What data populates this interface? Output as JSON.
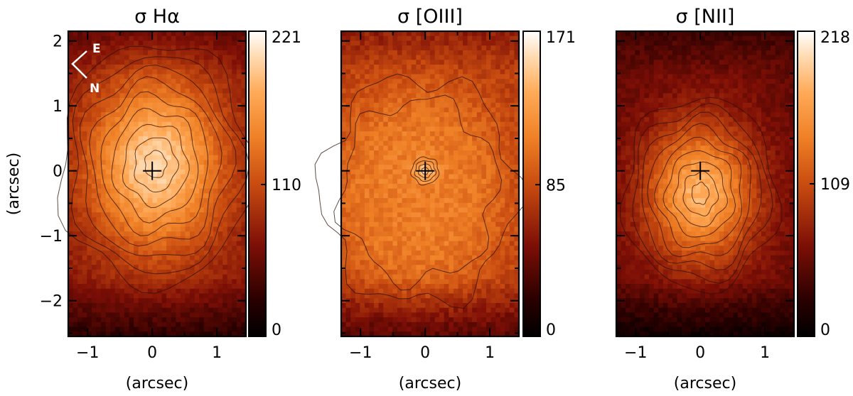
{
  "chart_data": [
    {
      "type": "heatmap",
      "title": "σ  Hα",
      "xlabel": "(arcsec)",
      "ylabel": "(arcsec)",
      "xlim": [
        -1.3,
        1.45
      ],
      "ylim": [
        -2.55,
        2.15
      ],
      "x_ticks": [
        -1,
        0,
        1
      ],
      "y_ticks": [
        2,
        1,
        0,
        -1,
        -2
      ],
      "x_tick_labels": [
        "−1",
        "0",
        "1"
      ],
      "y_tick_labels": [
        "2",
        "1",
        "0",
        "−1",
        "−2"
      ],
      "colorbar": {
        "min": 0,
        "mid": 110,
        "max": 221,
        "labels": [
          "221",
          "110",
          "0"
        ]
      },
      "peak": {
        "x": 0.05,
        "y": 0.1,
        "value": 200
      },
      "peak_shape": {
        "sx": 0.75,
        "sy": 0.95
      },
      "background_level": 70,
      "center_marker": {
        "x": 0,
        "y": 0
      },
      "compass": {
        "east": "E",
        "north": "N"
      }
    },
    {
      "type": "heatmap",
      "title": "σ  [OIII]",
      "xlabel": "(arcsec)",
      "ylabel": "",
      "xlim": [
        -1.3,
        1.45
      ],
      "ylim": [
        -2.55,
        2.15
      ],
      "x_ticks": [
        -1,
        0,
        1
      ],
      "y_ticks": [
        2,
        1,
        0,
        -1,
        -2
      ],
      "x_tick_labels": [
        "−1",
        "0",
        "1"
      ],
      "y_tick_labels": [],
      "colorbar": {
        "min": 0,
        "mid": 85,
        "max": 171,
        "labels": [
          "171",
          "85",
          "0"
        ]
      },
      "peak": {
        "x": 0.0,
        "y": 0.0,
        "value": 150
      },
      "peak_shape": {
        "sx": 0.12,
        "sy": 0.12
      },
      "plateau": {
        "x": -0.1,
        "y": -0.3,
        "value": 110,
        "sx": 1.2,
        "sy": 1.4
      },
      "background_level": 80,
      "center_marker": {
        "x": 0,
        "y": 0
      }
    },
    {
      "type": "heatmap",
      "title": "σ  [NII]",
      "xlabel": "(arcsec)",
      "ylabel": "",
      "xlim": [
        -1.3,
        1.45
      ],
      "ylim": [
        -2.55,
        2.15
      ],
      "x_ticks": [
        -1,
        0,
        1
      ],
      "y_ticks": [
        2,
        1,
        0,
        -1,
        -2
      ],
      "x_tick_labels": [
        "−1",
        "0",
        "1"
      ],
      "y_tick_labels": [],
      "colorbar": {
        "min": 0,
        "mid": 109,
        "max": 218,
        "labels": [
          "218",
          "109",
          "0"
        ]
      },
      "peak": {
        "x": 0.0,
        "y": -0.35,
        "value": 180
      },
      "peak_shape": {
        "sx": 0.6,
        "sy": 0.75
      },
      "background_level": 55,
      "center_marker": {
        "x": 0,
        "y": 0
      }
    }
  ]
}
